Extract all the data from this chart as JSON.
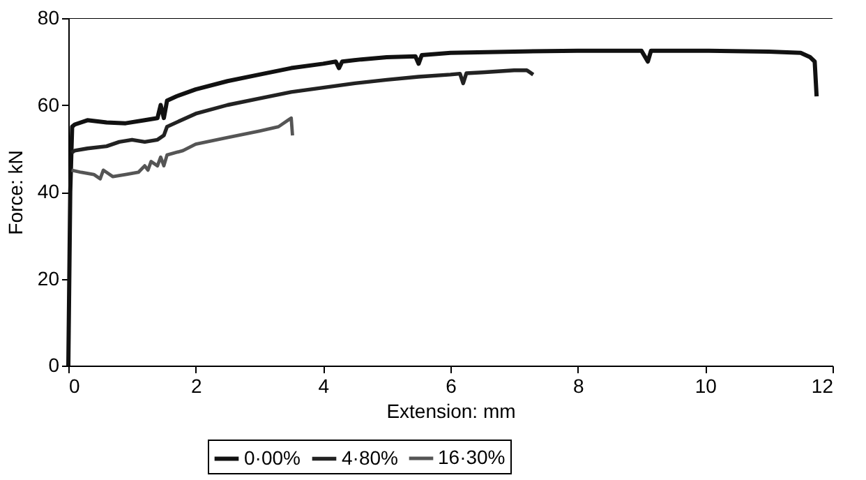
{
  "chart_data": {
    "type": "line",
    "xlabel": "Extension: mm",
    "ylabel": "Force: kN",
    "xlim": [
      0,
      12
    ],
    "ylim": [
      0,
      80
    ],
    "xticks": [
      0,
      2,
      4,
      6,
      8,
      10,
      12
    ],
    "yticks": [
      0,
      20,
      40,
      60,
      80
    ],
    "grid": false,
    "legend": "bottom",
    "line_style": "solid",
    "marker": "none",
    "ref_lines": [
      {
        "axis": "y",
        "value": 80
      }
    ],
    "series": [
      {
        "name": "0·00%",
        "color": "#111111",
        "x": [
          0,
          0.03,
          0.06,
          0.1,
          0.3,
          0.6,
          0.9,
          1.2,
          1.4,
          1.45,
          1.5,
          1.55,
          1.7,
          2,
          2.5,
          3,
          3.5,
          4,
          4.2,
          4.25,
          4.3,
          4.6,
          5,
          5.45,
          5.5,
          5.55,
          6,
          7,
          8,
          9,
          9.1,
          9.15,
          9.2,
          10,
          11,
          11.5,
          11.65,
          11.72,
          11.75
        ],
        "values": [
          0,
          40,
          55,
          55.5,
          56.5,
          56,
          55.8,
          56.5,
          57,
          60,
          57,
          61,
          62,
          63.6,
          65.5,
          67,
          68.5,
          69.5,
          70,
          68.5,
          70,
          70.5,
          71,
          71.2,
          69.5,
          71.5,
          72,
          72.3,
          72.5,
          72.5,
          70,
          72.5,
          72.5,
          72.5,
          72.3,
          72,
          71,
          70,
          62
        ]
      },
      {
        "name": "4·80%",
        "color": "#222222",
        "x": [
          0.05,
          0.1,
          0.3,
          0.6,
          0.8,
          1,
          1.2,
          1.4,
          1.5,
          1.55,
          1.7,
          2,
          2.5,
          3,
          3.5,
          4,
          4.5,
          5,
          5.5,
          6,
          6.15,
          6.2,
          6.25,
          6.5,
          7,
          7.2,
          7.25,
          7.3
        ],
        "values": [
          49,
          49.5,
          50,
          50.5,
          51.5,
          52,
          51.5,
          52,
          53,
          55,
          56,
          58,
          60,
          61.5,
          63,
          64,
          65,
          65.8,
          66.5,
          67,
          67.2,
          65,
          67.3,
          67.5,
          68,
          68,
          67.5,
          67
        ]
      },
      {
        "name": "16·30%",
        "color": "#555555",
        "x": [
          0.05,
          0.2,
          0.4,
          0.5,
          0.55,
          0.7,
          0.9,
          1.1,
          1.2,
          1.25,
          1.3,
          1.4,
          1.45,
          1.5,
          1.55,
          1.8,
          2,
          2.5,
          3,
          3.3,
          3.45,
          3.5,
          3.52
        ],
        "values": [
          45,
          44.5,
          44,
          43,
          45,
          43.5,
          44,
          44.5,
          46,
          45,
          47,
          46,
          48,
          46,
          48.5,
          49.5,
          51,
          52.5,
          54,
          55,
          56.5,
          57,
          53
        ]
      }
    ]
  }
}
